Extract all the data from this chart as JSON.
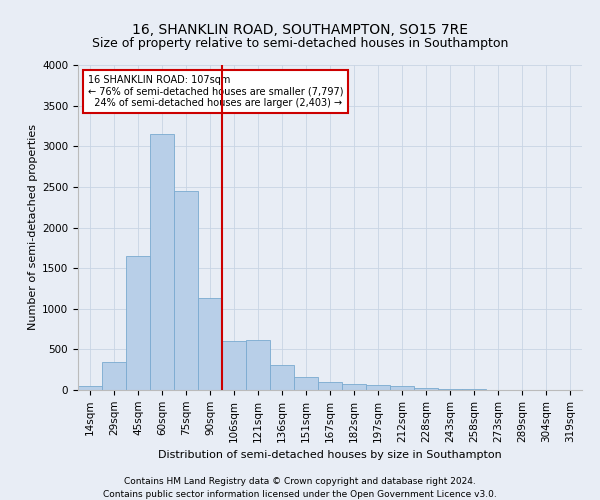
{
  "title": "16, SHANKLIN ROAD, SOUTHAMPTON, SO15 7RE",
  "subtitle": "Size of property relative to semi-detached houses in Southampton",
  "xlabel": "Distribution of semi-detached houses by size in Southampton",
  "ylabel": "Number of semi-detached properties",
  "footnote1": "Contains HM Land Registry data © Crown copyright and database right 2024.",
  "footnote2": "Contains public sector information licensed under the Open Government Licence v3.0.",
  "categories": [
    "14sqm",
    "29sqm",
    "45sqm",
    "60sqm",
    "75sqm",
    "90sqm",
    "106sqm",
    "121sqm",
    "136sqm",
    "151sqm",
    "167sqm",
    "182sqm",
    "197sqm",
    "212sqm",
    "228sqm",
    "243sqm",
    "258sqm",
    "273sqm",
    "289sqm",
    "304sqm",
    "319sqm"
  ],
  "values": [
    50,
    340,
    1650,
    3150,
    2450,
    1130,
    600,
    620,
    310,
    155,
    100,
    75,
    65,
    45,
    30,
    18,
    10,
    5,
    4,
    3,
    3
  ],
  "bar_color": "#b8cfe8",
  "bar_edge_color": "#7aaad0",
  "property_line_x": 5.5,
  "property_sqm": 107,
  "pct_smaller": 76,
  "count_smaller": 7797,
  "pct_larger": 24,
  "count_larger": 2403,
  "annotation_box_color": "#ffffff",
  "annotation_box_edge": "#cc0000",
  "vline_color": "#cc0000",
  "ylim": [
    0,
    4000
  ],
  "yticks": [
    0,
    500,
    1000,
    1500,
    2000,
    2500,
    3000,
    3500,
    4000
  ],
  "grid_color": "#c8d4e4",
  "bg_color": "#e8edf5",
  "title_fontsize": 10,
  "subtitle_fontsize": 9,
  "axis_label_fontsize": 8,
  "tick_fontsize": 7.5,
  "footnote_fontsize": 6.5
}
